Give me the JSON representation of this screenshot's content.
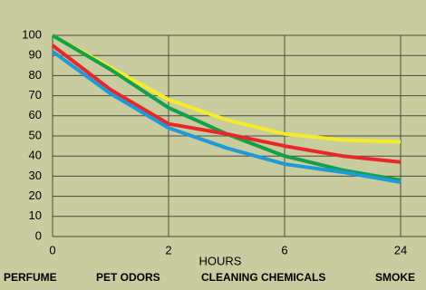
{
  "chart_data": {
    "type": "line",
    "categories": [
      "0",
      null,
      "2",
      null,
      "6",
      null,
      "24"
    ],
    "x_label": "HOURS",
    "bottom_labels": [
      "PERFUME",
      "PET ODORS",
      "CLEANING CHEMICALS",
      "SMOKE"
    ],
    "ylim": [
      0,
      100
    ],
    "yticks": [
      0,
      10,
      20,
      30,
      40,
      50,
      60,
      70,
      80,
      90,
      100
    ],
    "grid": true,
    "series": [
      {
        "color": "#f4ec2a",
        "values": [
          100,
          84,
          68,
          58,
          51,
          48,
          47
        ]
      },
      {
        "color": "#14a04a",
        "values": [
          100,
          83,
          64,
          51,
          40,
          33,
          28
        ]
      },
      {
        "color": "#e8262b",
        "values": [
          95,
          73,
          56,
          51,
          45,
          40,
          37
        ]
      },
      {
        "color": "#1e9ad6",
        "values": [
          92,
          71,
          54,
          44,
          36,
          32,
          27
        ]
      }
    ]
  }
}
